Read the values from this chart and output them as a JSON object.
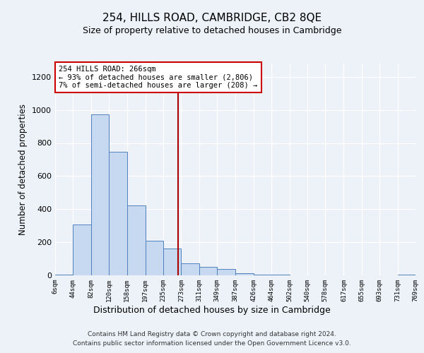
{
  "title": "254, HILLS ROAD, CAMBRIDGE, CB2 8QE",
  "subtitle": "Size of property relative to detached houses in Cambridge",
  "xlabel": "Distribution of detached houses by size in Cambridge",
  "ylabel": "Number of detached properties",
  "bin_edges": [
    6,
    44,
    82,
    120,
    158,
    197,
    235,
    273,
    311,
    349,
    387,
    426,
    464,
    502,
    540,
    578,
    617,
    655,
    693,
    731,
    769
  ],
  "bin_labels": [
    "6sqm",
    "44sqm",
    "82sqm",
    "120sqm",
    "158sqm",
    "197sqm",
    "235sqm",
    "273sqm",
    "311sqm",
    "349sqm",
    "387sqm",
    "426sqm",
    "464sqm",
    "502sqm",
    "540sqm",
    "578sqm",
    "617sqm",
    "655sqm",
    "693sqm",
    "731sqm",
    "769sqm"
  ],
  "bar_heights": [
    6,
    308,
    972,
    746,
    422,
    211,
    162,
    71,
    50,
    38,
    14,
    5,
    5,
    0,
    0,
    0,
    0,
    0,
    0,
    5
  ],
  "bar_color": "#c6d9f0",
  "bar_edge_color": "#4f81bd",
  "property_line_x": 266,
  "annotation_line1": "254 HILLS ROAD: 266sqm",
  "annotation_line2": "← 93% of detached houses are smaller (2,806)",
  "annotation_line3": "7% of semi-detached houses are larger (208) →",
  "annotation_box_color": "white",
  "annotation_box_edge_color": "#cc0000",
  "vline_color": "#aa0000",
  "ylim": [
    0,
    1280
  ],
  "yticks": [
    0,
    200,
    400,
    600,
    800,
    1000,
    1200
  ],
  "background_color": "#edf2f9",
  "grid_color": "#ffffff",
  "footer_line1": "Contains HM Land Registry data © Crown copyright and database right 2024.",
  "footer_line2": "Contains public sector information licensed under the Open Government Licence v3.0."
}
